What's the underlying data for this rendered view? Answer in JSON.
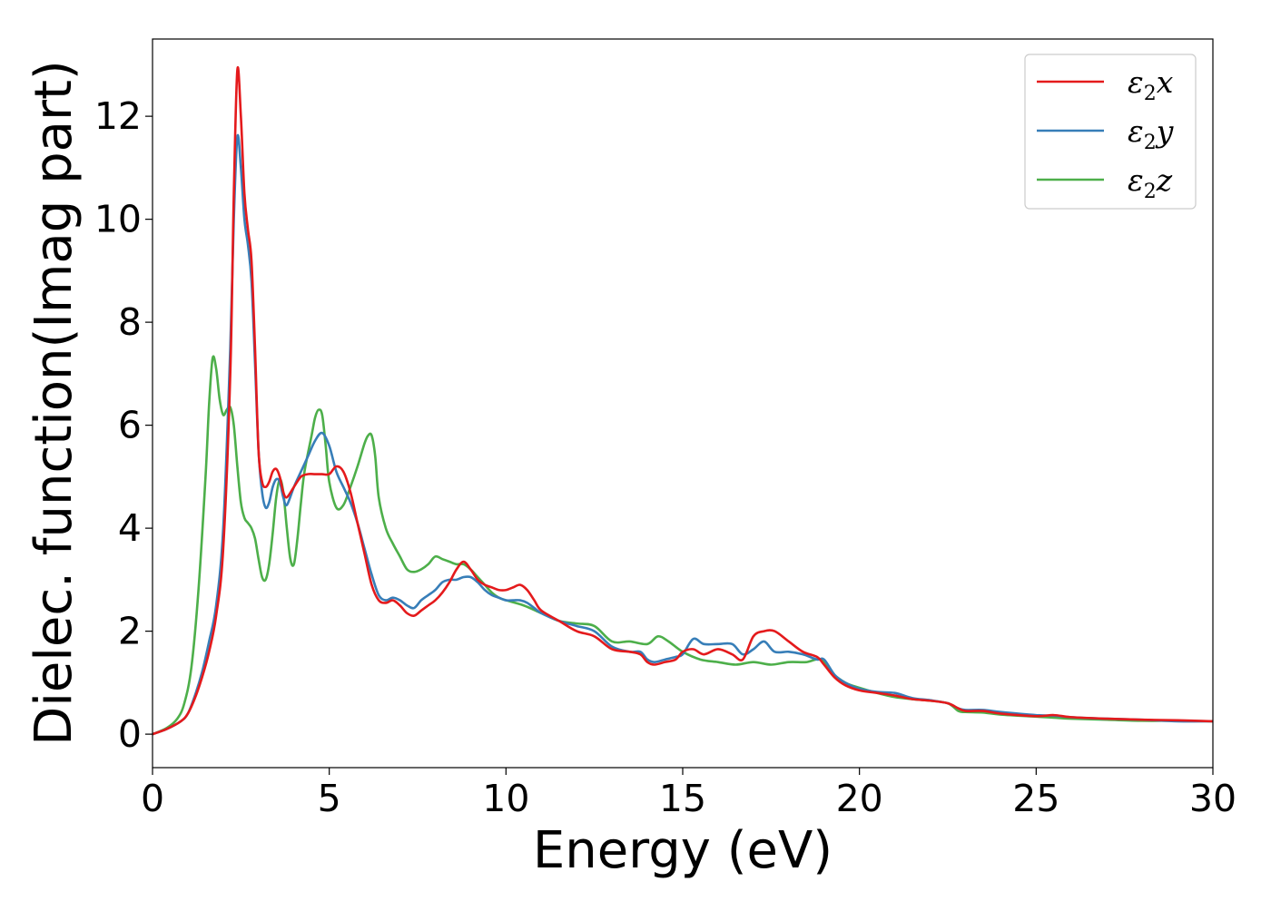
{
  "chart_data": {
    "type": "line",
    "title": "",
    "xlabel": "Energy (eV)",
    "ylabel": "Dielec. function(Imag part)",
    "xlim": [
      0,
      30
    ],
    "ylim": [
      -0.65,
      13.5
    ],
    "xticks": [
      0,
      5,
      10,
      15,
      20,
      25,
      30
    ],
    "yticks": [
      0,
      2,
      4,
      6,
      8,
      10,
      12
    ],
    "grid": false,
    "legend_position": "top-right",
    "colors": {
      "x": "#e41a1c",
      "y": "#377eb8",
      "z": "#4daf4a",
      "axes": "#000000",
      "legend_border": "#cccccc"
    },
    "series": [
      {
        "key": "x",
        "name": "ε₂x",
        "legend_symbol": "ε",
        "legend_subscript": "2",
        "legend_suffix": "x",
        "color": "#e41a1c",
        "x": [
          0,
          0.4,
          0.8,
          1.0,
          1.2,
          1.4,
          1.6,
          1.8,
          2.0,
          2.2,
          2.3,
          2.4,
          2.5,
          2.6,
          2.7,
          2.8,
          2.9,
          3.0,
          3.1,
          3.2,
          3.3,
          3.4,
          3.5,
          3.6,
          3.7,
          3.8,
          4.0,
          4.2,
          4.4,
          4.6,
          4.8,
          5.0,
          5.2,
          5.4,
          5.6,
          5.8,
          6.0,
          6.2,
          6.4,
          6.6,
          6.8,
          7.0,
          7.2,
          7.4,
          7.6,
          7.8,
          8.0,
          8.2,
          8.4,
          8.6,
          8.8,
          9.0,
          9.2,
          9.4,
          9.6,
          9.8,
          10.0,
          10.2,
          10.4,
          10.6,
          10.8,
          11.0,
          11.5,
          12.0,
          12.5,
          13.0,
          13.5,
          13.8,
          14.0,
          14.2,
          14.5,
          14.8,
          15.0,
          15.3,
          15.6,
          16.0,
          16.4,
          16.7,
          17.0,
          17.3,
          17.6,
          18.0,
          18.4,
          18.8,
          19.0,
          19.3,
          19.6,
          20.0,
          20.5,
          21.0,
          21.5,
          22.0,
          22.5,
          22.8,
          23.0,
          23.5,
          24.0,
          25.0,
          25.5,
          26.0,
          27.0,
          28.0,
          29.0,
          30.0
        ],
        "values": [
          0.0,
          0.1,
          0.25,
          0.4,
          0.7,
          1.1,
          1.6,
          2.3,
          3.6,
          7.0,
          10.5,
          12.9,
          12.0,
          10.5,
          9.8,
          9.2,
          7.5,
          5.5,
          4.9,
          4.8,
          4.9,
          5.1,
          5.15,
          5.0,
          4.7,
          4.6,
          4.8,
          5.0,
          5.05,
          5.05,
          5.05,
          5.05,
          5.2,
          5.1,
          4.7,
          4.1,
          3.5,
          2.9,
          2.6,
          2.55,
          2.6,
          2.5,
          2.35,
          2.3,
          2.4,
          2.5,
          2.6,
          2.75,
          2.95,
          3.2,
          3.35,
          3.2,
          3.0,
          2.9,
          2.85,
          2.8,
          2.8,
          2.85,
          2.9,
          2.8,
          2.6,
          2.4,
          2.2,
          2.0,
          1.9,
          1.65,
          1.6,
          1.55,
          1.4,
          1.35,
          1.4,
          1.45,
          1.6,
          1.65,
          1.55,
          1.65,
          1.55,
          1.45,
          1.9,
          2.0,
          2.0,
          1.8,
          1.6,
          1.5,
          1.35,
          1.1,
          0.95,
          0.85,
          0.8,
          0.75,
          0.68,
          0.65,
          0.6,
          0.5,
          0.45,
          0.45,
          0.4,
          0.35,
          0.37,
          0.33,
          0.3,
          0.28,
          0.27,
          0.25
        ]
      },
      {
        "key": "y",
        "name": "ε₂y",
        "legend_symbol": "ε",
        "legend_subscript": "2",
        "legend_suffix": "y",
        "color": "#377eb8",
        "x": [
          0,
          0.4,
          0.8,
          1.0,
          1.2,
          1.4,
          1.6,
          1.8,
          2.0,
          2.2,
          2.3,
          2.4,
          2.5,
          2.6,
          2.7,
          2.8,
          2.9,
          3.0,
          3.1,
          3.2,
          3.3,
          3.4,
          3.5,
          3.6,
          3.7,
          3.8,
          4.0,
          4.2,
          4.4,
          4.6,
          4.8,
          5.0,
          5.2,
          5.4,
          5.6,
          5.8,
          6.0,
          6.2,
          6.4,
          6.6,
          6.8,
          7.0,
          7.2,
          7.4,
          7.6,
          7.8,
          8.0,
          8.2,
          8.4,
          8.6,
          8.8,
          9.0,
          9.2,
          9.4,
          9.6,
          9.8,
          10.0,
          10.2,
          10.4,
          10.6,
          10.8,
          11.0,
          11.5,
          12.0,
          12.5,
          13.0,
          13.5,
          13.8,
          14.0,
          14.2,
          14.5,
          14.8,
          15.0,
          15.3,
          15.6,
          16.0,
          16.4,
          16.7,
          17.0,
          17.3,
          17.6,
          18.0,
          18.4,
          18.8,
          19.0,
          19.3,
          19.6,
          20.0,
          20.5,
          21.0,
          21.5,
          22.0,
          22.5,
          22.8,
          23.0,
          23.5,
          24.0,
          25.0,
          25.5,
          26.0,
          27.0,
          28.0,
          29.0,
          30.0
        ],
        "values": [
          0.0,
          0.1,
          0.25,
          0.4,
          0.75,
          1.2,
          1.8,
          2.5,
          4.0,
          7.5,
          10.0,
          11.6,
          11.0,
          10.0,
          9.5,
          8.8,
          7.2,
          5.5,
          4.7,
          4.4,
          4.5,
          4.8,
          4.95,
          4.9,
          4.6,
          4.45,
          4.8,
          5.1,
          5.4,
          5.7,
          5.85,
          5.6,
          5.1,
          4.8,
          4.5,
          4.1,
          3.6,
          3.1,
          2.7,
          2.6,
          2.65,
          2.6,
          2.5,
          2.45,
          2.6,
          2.7,
          2.8,
          2.95,
          3.0,
          3.0,
          3.05,
          3.05,
          2.95,
          2.8,
          2.7,
          2.65,
          2.6,
          2.6,
          2.6,
          2.55,
          2.45,
          2.35,
          2.2,
          2.1,
          2.0,
          1.7,
          1.6,
          1.6,
          1.45,
          1.4,
          1.45,
          1.5,
          1.55,
          1.85,
          1.75,
          1.75,
          1.75,
          1.55,
          1.65,
          1.8,
          1.6,
          1.6,
          1.55,
          1.45,
          1.45,
          1.15,
          1.0,
          0.88,
          0.82,
          0.8,
          0.7,
          0.66,
          0.6,
          0.5,
          0.47,
          0.47,
          0.43,
          0.37,
          0.36,
          0.33,
          0.3,
          0.28,
          0.25,
          0.25
        ]
      },
      {
        "key": "z",
        "name": "ε₂z",
        "legend_symbol": "ε",
        "legend_subscript": "2",
        "legend_suffix": "z",
        "color": "#4daf4a",
        "x": [
          0,
          0.4,
          0.7,
          0.9,
          1.1,
          1.3,
          1.5,
          1.6,
          1.7,
          1.8,
          1.9,
          2.0,
          2.1,
          2.2,
          2.3,
          2.4,
          2.5,
          2.6,
          2.7,
          2.8,
          2.9,
          3.0,
          3.1,
          3.2,
          3.3,
          3.4,
          3.5,
          3.6,
          3.7,
          3.8,
          3.9,
          4.0,
          4.1,
          4.2,
          4.3,
          4.5,
          4.6,
          4.7,
          4.8,
          4.9,
          5.0,
          5.2,
          5.4,
          5.6,
          5.8,
          6.0,
          6.1,
          6.2,
          6.3,
          6.4,
          6.6,
          6.8,
          7.0,
          7.2,
          7.4,
          7.6,
          7.8,
          8.0,
          8.2,
          8.4,
          8.6,
          8.8,
          9.0,
          9.2,
          9.4,
          9.6,
          9.8,
          10.0,
          10.5,
          11.0,
          11.5,
          12.0,
          12.5,
          13.0,
          13.5,
          14.0,
          14.3,
          14.6,
          15.0,
          15.5,
          16.0,
          16.5,
          17.0,
          17.5,
          18.0,
          18.5,
          18.9,
          19.2,
          19.6,
          20.0,
          20.5,
          21.0,
          21.5,
          22.0,
          22.5,
          22.8,
          23.0,
          23.5,
          24.0,
          25.0,
          25.5,
          26.0,
          27.0,
          28.0,
          29.0,
          30.0
        ],
        "values": [
          0.0,
          0.12,
          0.3,
          0.6,
          1.3,
          2.8,
          5.0,
          6.4,
          7.3,
          7.1,
          6.5,
          6.2,
          6.3,
          6.35,
          6.0,
          5.2,
          4.5,
          4.2,
          4.1,
          4.0,
          3.8,
          3.4,
          3.05,
          3.0,
          3.3,
          3.9,
          4.6,
          4.95,
          4.7,
          4.0,
          3.4,
          3.3,
          3.8,
          4.5,
          5.1,
          5.8,
          6.15,
          6.3,
          6.2,
          5.6,
          4.9,
          4.4,
          4.45,
          4.8,
          5.2,
          5.65,
          5.8,
          5.8,
          5.4,
          4.6,
          4.0,
          3.7,
          3.45,
          3.2,
          3.15,
          3.2,
          3.3,
          3.45,
          3.4,
          3.35,
          3.3,
          3.3,
          3.2,
          3.05,
          2.9,
          2.75,
          2.65,
          2.6,
          2.5,
          2.35,
          2.2,
          2.15,
          2.1,
          1.8,
          1.8,
          1.75,
          1.9,
          1.8,
          1.6,
          1.45,
          1.4,
          1.35,
          1.4,
          1.35,
          1.4,
          1.4,
          1.45,
          1.2,
          1.0,
          0.9,
          0.8,
          0.72,
          0.68,
          0.65,
          0.6,
          0.45,
          0.43,
          0.42,
          0.38,
          0.34,
          0.32,
          0.3,
          0.28,
          0.26,
          0.26,
          0.25
        ]
      }
    ]
  }
}
